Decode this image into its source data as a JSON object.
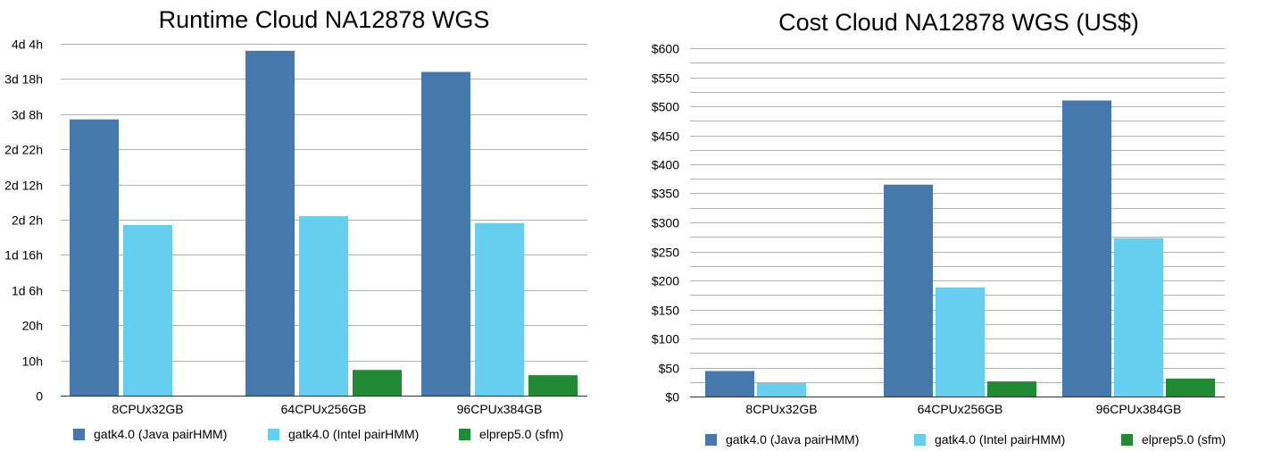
{
  "colors": {
    "java": "#4579ad",
    "intel": "#66ceef",
    "elprep": "#218a35",
    "grid": "#b3b3b3"
  },
  "chart_data": [
    {
      "type": "bar",
      "title": "Runtime Cloud NA12878 WGS",
      "xlabel": "",
      "ylabel": "",
      "y_unit": "hours",
      "ylim": [
        0,
        100
      ],
      "yticks": [
        {
          "value": 0,
          "label": "0"
        },
        {
          "value": 10,
          "label": "10h"
        },
        {
          "value": 20,
          "label": "20h"
        },
        {
          "value": 30,
          "label": "1d 6h"
        },
        {
          "value": 40,
          "label": "1d 16h"
        },
        {
          "value": 50,
          "label": "2d 2h"
        },
        {
          "value": 60,
          "label": "2d 12h"
        },
        {
          "value": 70,
          "label": "2d 22h"
        },
        {
          "value": 80,
          "label": "3d 8h"
        },
        {
          "value": 90,
          "label": "3d 18h"
        },
        {
          "value": 100,
          "label": "4d 4h"
        }
      ],
      "categories": [
        "8CPUx32GB",
        "64CPUx256GB",
        "96CPUx384GB"
      ],
      "series": [
        {
          "name": "gatk4.0 (Java pairHMM)",
          "color_key": "java",
          "values": [
            78.5,
            98.0,
            92.0
          ]
        },
        {
          "name": "gatk4.0 (Intel pairHMM)",
          "color_key": "intel",
          "values": [
            48.5,
            51.0,
            49.0
          ]
        },
        {
          "name": "elprep5.0 (sfm)",
          "color_key": "elprep",
          "values": [
            null,
            7.3,
            5.8
          ]
        }
      ],
      "grid": true,
      "legend": "bottom"
    },
    {
      "type": "bar",
      "title": "Cost Cloud NA12878 WGS (US$)",
      "xlabel": "",
      "ylabel": "",
      "y_unit": "US$",
      "ylim": [
        0,
        600
      ],
      "yticks": [
        {
          "value": 0,
          "label": "$0"
        },
        {
          "value": 50,
          "label": "$50"
        },
        {
          "value": 100,
          "label": "$100"
        },
        {
          "value": 150,
          "label": "$150"
        },
        {
          "value": 200,
          "label": "$200"
        },
        {
          "value": 250,
          "label": "$250"
        },
        {
          "value": 300,
          "label": "$300"
        },
        {
          "value": 350,
          "label": "$350"
        },
        {
          "value": 400,
          "label": "$400"
        },
        {
          "value": 450,
          "label": "$450"
        },
        {
          "value": 500,
          "label": "$500"
        },
        {
          "value": 550,
          "label": "$550"
        },
        {
          "value": 600,
          "label": "$600"
        }
      ],
      "minor_grid_step": 25,
      "categories": [
        "8CPUx32GB",
        "64CPUx256GB",
        "96CPUx384GB"
      ],
      "series": [
        {
          "name": "gatk4.0 (Java pairHMM)",
          "color_key": "java",
          "values": [
            44,
            365,
            510
          ]
        },
        {
          "name": "gatk4.0 (Intel pairHMM)",
          "color_key": "intel",
          "values": [
            23,
            188,
            273
          ]
        },
        {
          "name": "elprep5.0 (sfm)",
          "color_key": "elprep",
          "values": [
            null,
            26,
            31
          ]
        }
      ],
      "grid": true,
      "legend": "bottom"
    }
  ]
}
